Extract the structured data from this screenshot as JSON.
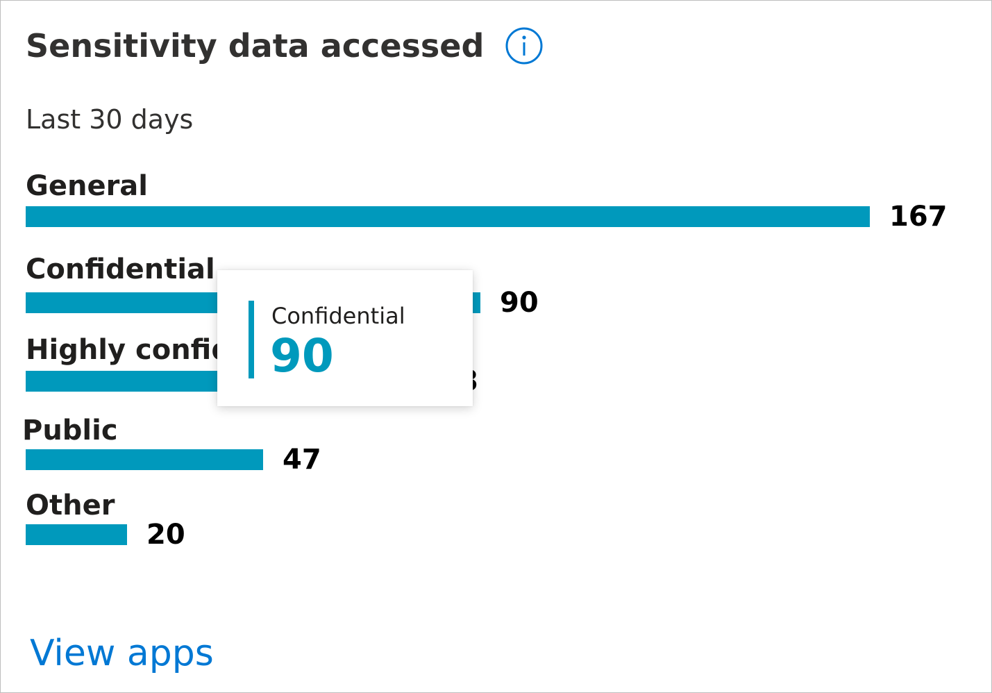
{
  "card": {
    "title": "Sensitivity data accessed",
    "info_icon": "info-icon",
    "subtitle": "Last 30 days",
    "link_label": "View apps"
  },
  "colors": {
    "bar": "#0099bc",
    "link": "#0078d4",
    "info_icon": "#0078d4"
  },
  "tooltip": {
    "label": "Confidential",
    "value": "90"
  },
  "chart_data": {
    "type": "bar",
    "orientation": "horizontal",
    "categories": [
      "General",
      "Confidential",
      "Highly confidential",
      "Public",
      "Other"
    ],
    "values": [
      167,
      90,
      78,
      47,
      20
    ],
    "title": "Sensitivity data accessed",
    "subtitle": "Last 30 days",
    "xlim": [
      0,
      167
    ],
    "grid": false,
    "legend": "none"
  }
}
